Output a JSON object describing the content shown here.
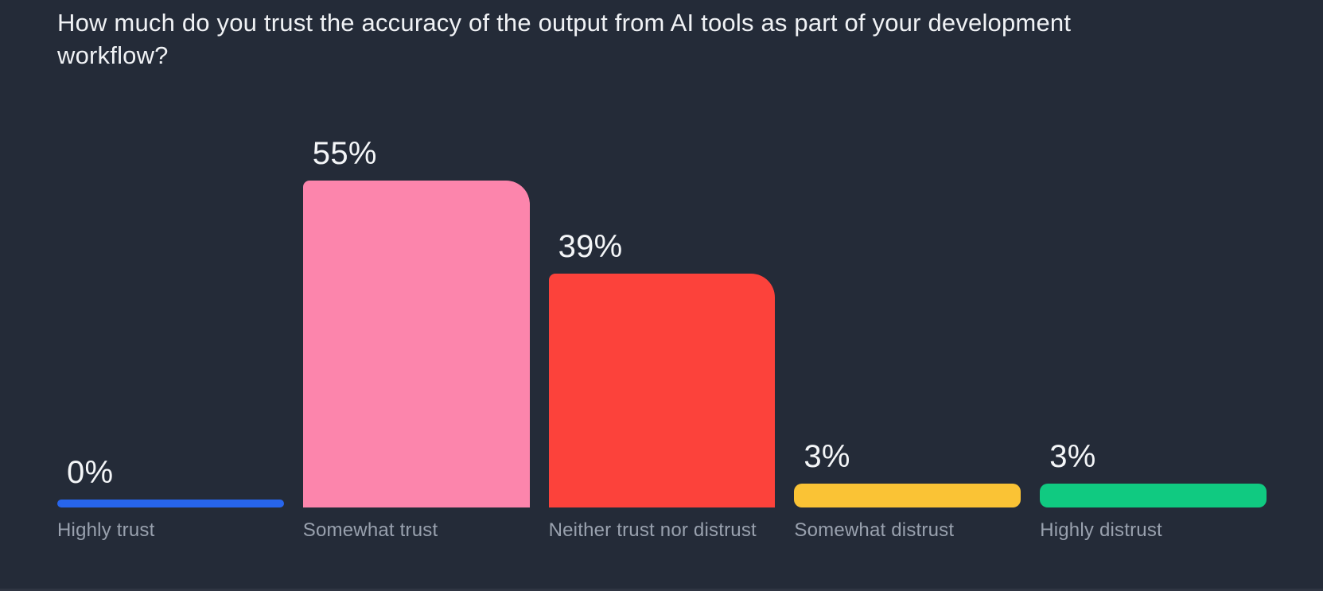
{
  "chart_data": {
    "type": "bar",
    "title": "How much do you trust the accuracy of the output from AI tools as part of your development workflow?",
    "xlabel": "",
    "ylabel": "",
    "ylim": [
      0,
      60
    ],
    "grid": false,
    "legend": "none",
    "categories": [
      "Highly trust",
      "Somewhat trust",
      "Neither trust nor distrust",
      "Somewhat distrust",
      "Highly distrust"
    ],
    "values": [
      0,
      55,
      39,
      3,
      3
    ],
    "bars": [
      {
        "label": "Highly trust",
        "value": 0,
        "value_label": "0%",
        "color": "#2765EC"
      },
      {
        "label": "Somewhat trust",
        "value": 55,
        "value_label": "55%",
        "color": "#FC85AC"
      },
      {
        "label": "Neither trust nor distrust",
        "value": 39,
        "value_label": "39%",
        "color": "#FC423B"
      },
      {
        "label": "Somewhat distrust",
        "value": 3,
        "value_label": "3%",
        "color": "#FAC335"
      },
      {
        "label": "Highly distrust",
        "value": 3,
        "value_label": "3%",
        "color": "#10CA81"
      }
    ],
    "colors": {
      "background": "#242B38",
      "title_text": "#F0F2F5",
      "value_text": "#F4F6F8",
      "category_text": "#99A1AE"
    }
  }
}
